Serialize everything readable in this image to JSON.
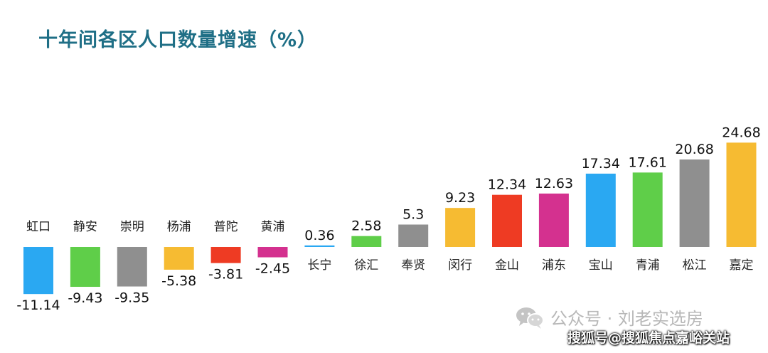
{
  "chart_data": {
    "type": "bar",
    "title": "十年间各区人口数量增速（%）",
    "categories": [
      "虹口",
      "静安",
      "崇明",
      "杨浦",
      "普陀",
      "黄浦",
      "长宁",
      "徐汇",
      "奉贤",
      "闵行",
      "金山",
      "浦东",
      "宝山",
      "青浦",
      "松江",
      "嘉定"
    ],
    "values": [
      -11.14,
      -9.43,
      -9.35,
      -5.38,
      -3.81,
      -2.45,
      0.36,
      2.58,
      5.3,
      9.23,
      12.34,
      12.63,
      17.34,
      17.61,
      20.68,
      24.68
    ],
    "value_labels": [
      "-11.14",
      "-9.43",
      "-9.35",
      "-5.38",
      "-3.81",
      "-2.45",
      "0.36",
      "2.58",
      "5.3",
      "9.23",
      "12.34",
      "12.63",
      "17.34",
      "17.61",
      "20.68",
      "24.68"
    ],
    "colors": [
      "#2aa8f2",
      "#5fce49",
      "#8f8f8f",
      "#f6bb32",
      "#ee3b23",
      "#d4318f",
      "#2aa8f2",
      "#5fce49",
      "#8f8f8f",
      "#f6bb32",
      "#ee3b23",
      "#d4318f",
      "#2aa8f2",
      "#5fce49",
      "#8f8f8f",
      "#f6bb32"
    ],
    "xlabel": "",
    "ylabel": "",
    "ylim": [
      -12,
      25
    ],
    "grid": false,
    "legend": "none"
  },
  "watermark": {
    "icon": "wechat-icon",
    "text": "公众号 · 刘老实选房"
  },
  "source_line": "搜狐号@搜狐焦点嘉峪关站"
}
